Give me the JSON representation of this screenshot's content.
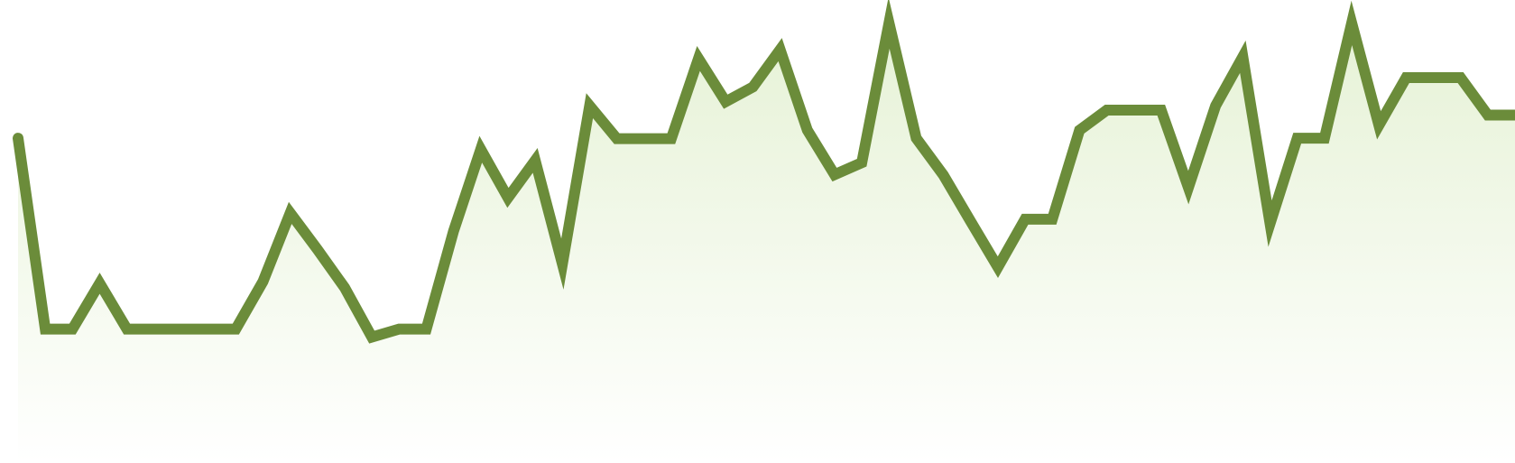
{
  "chart_data": {
    "type": "area",
    "title": "",
    "xlabel": "",
    "ylabel": "",
    "grid": false,
    "legend": "none",
    "ylim": [
      0,
      100
    ],
    "series": [
      {
        "values": [
          73.0,
          30.1,
          30.1,
          40.4,
          30.1,
          30.1,
          30.1,
          30.1,
          30.1,
          40.8,
          56.2,
          48.0,
          39.4,
          28.3,
          30.1,
          30.1,
          52.1,
          70.5,
          59.6,
          68.0,
          44.7,
          80.3,
          72.9,
          72.9,
          72.9,
          90.9,
          81.2,
          84.5,
          92.9,
          74.8,
          64.8,
          67.5,
          98.9,
          73.0,
          64.7,
          54.3,
          44.0,
          54.8,
          54.8,
          74.8,
          79.3,
          79.3,
          79.3,
          61.9,
          80.3,
          91.3,
          53.8,
          73.0,
          73.0,
          98.9,
          75.9,
          86.6,
          86.6,
          86.6,
          78.2,
          78.2
        ]
      }
    ],
    "colors": {
      "line": "#6b8c3a",
      "fill_top": "#e6f2d6",
      "fill_bottom": "#ffffff"
    }
  }
}
